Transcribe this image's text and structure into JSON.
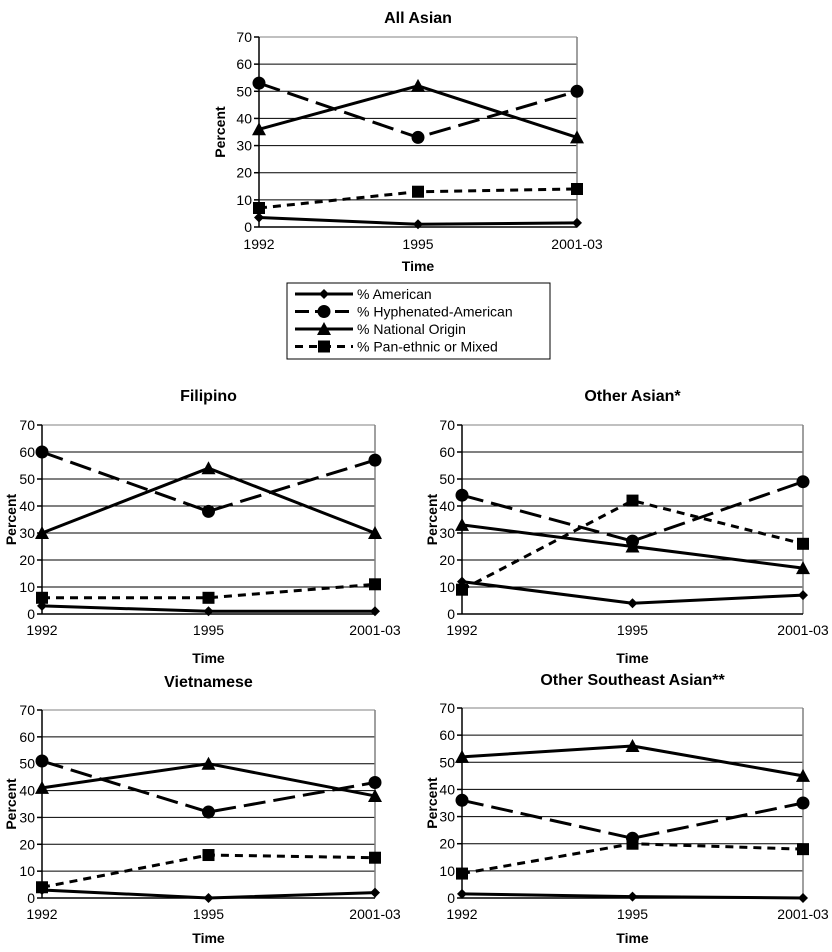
{
  "legend": [
    {
      "key": "american",
      "label": "% American",
      "marker": "diamond",
      "dash": "solid"
    },
    {
      "key": "hyphenated",
      "label": "% Hyphenated-American",
      "marker": "circle",
      "dash": "longdash"
    },
    {
      "key": "national",
      "label": "% National Origin",
      "marker": "triangle",
      "dash": "solid"
    },
    {
      "key": "panethnic",
      "label": "% Pan-ethnic or Mixed",
      "marker": "square",
      "dash": "shortdash"
    }
  ],
  "colors": {
    "line": "#000000",
    "grid": "#000000",
    "frame": "#808080"
  },
  "chart_data": [
    {
      "type": "line",
      "title": "All Asian",
      "xlabel": "Time",
      "ylabel": "Percent",
      "categories": [
        "1992",
        "1995",
        "2001-03"
      ],
      "ylim": [
        0,
        70
      ],
      "yticks": [
        0,
        10,
        20,
        30,
        40,
        50,
        60,
        70
      ],
      "grid": true,
      "series": [
        {
          "name": "% American",
          "values": [
            3.5,
            1,
            1.5
          ]
        },
        {
          "name": "% Hyphenated-American",
          "values": [
            53,
            33,
            50
          ]
        },
        {
          "name": "% National Origin",
          "values": [
            36,
            52,
            33
          ]
        },
        {
          "name": "% Pan-ethnic or Mixed",
          "values": [
            7,
            13,
            14
          ]
        }
      ]
    },
    {
      "type": "line",
      "title": "Filipino",
      "xlabel": "Time",
      "ylabel": "Percent",
      "categories": [
        "1992",
        "1995",
        "2001-03"
      ],
      "ylim": [
        0,
        70
      ],
      "yticks": [
        0,
        10,
        20,
        30,
        40,
        50,
        60,
        70
      ],
      "grid": true,
      "series": [
        {
          "name": "% American",
          "values": [
            3,
            1,
            1
          ]
        },
        {
          "name": "% Hyphenated-American",
          "values": [
            60,
            38,
            57
          ]
        },
        {
          "name": "% National Origin",
          "values": [
            30,
            54,
            30
          ]
        },
        {
          "name": "% Pan-ethnic or Mixed",
          "values": [
            6,
            6,
            11
          ]
        }
      ]
    },
    {
      "type": "line",
      "title": "Other Asian*",
      "xlabel": "Time",
      "ylabel": "Percent",
      "categories": [
        "1992",
        "1995",
        "2001-03"
      ],
      "ylim": [
        0,
        70
      ],
      "yticks": [
        0,
        10,
        20,
        30,
        40,
        50,
        60,
        70
      ],
      "grid": true,
      "series": [
        {
          "name": "% American",
          "values": [
            12,
            4,
            7
          ]
        },
        {
          "name": "% Hyphenated-American",
          "values": [
            44,
            27,
            49
          ]
        },
        {
          "name": "% National Origin",
          "values": [
            33,
            25,
            17
          ]
        },
        {
          "name": "% Pan-ethnic or Mixed",
          "values": [
            9,
            42,
            26
          ]
        }
      ]
    },
    {
      "type": "line",
      "title": "Vietnamese",
      "xlabel": "Time",
      "ylabel": "Percent",
      "categories": [
        "1992",
        "1995",
        "2001-03"
      ],
      "ylim": [
        0,
        70
      ],
      "yticks": [
        0,
        10,
        20,
        30,
        40,
        50,
        60,
        70
      ],
      "grid": true,
      "series": [
        {
          "name": "% American",
          "values": [
            3,
            0,
            2
          ]
        },
        {
          "name": "% Hyphenated-American",
          "values": [
            51,
            32,
            43
          ]
        },
        {
          "name": "% National Origin",
          "values": [
            41,
            50,
            38
          ]
        },
        {
          "name": "% Pan-ethnic or Mixed",
          "values": [
            4,
            16,
            15
          ]
        }
      ]
    },
    {
      "type": "line",
      "title": "Other Southeast Asian**",
      "xlabel": "Time",
      "ylabel": "Percent",
      "categories": [
        "1992",
        "1995",
        "2001-03"
      ],
      "ylim": [
        0,
        70
      ],
      "yticks": [
        0,
        10,
        20,
        30,
        40,
        50,
        60,
        70
      ],
      "grid": true,
      "series": [
        {
          "name": "% American",
          "values": [
            1.5,
            0.5,
            0
          ]
        },
        {
          "name": "% Hyphenated-American",
          "values": [
            36,
            22,
            35
          ]
        },
        {
          "name": "% National Origin",
          "values": [
            52,
            56,
            45
          ]
        },
        {
          "name": "% Pan-ethnic or Mixed",
          "values": [
            9,
            20,
            18
          ]
        }
      ]
    }
  ]
}
